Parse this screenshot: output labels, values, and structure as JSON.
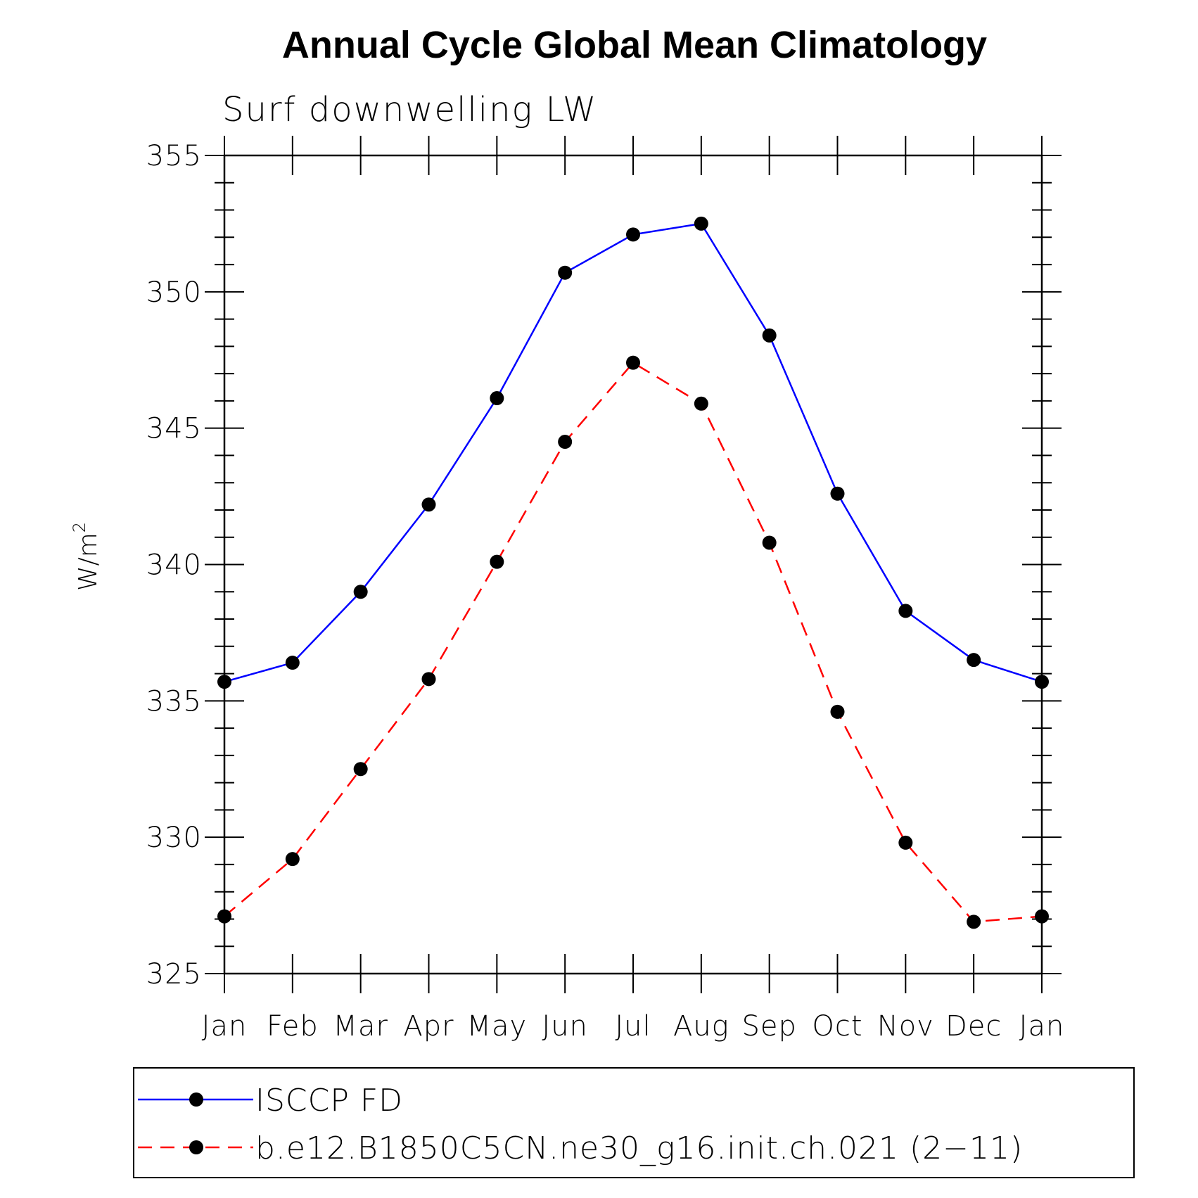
{
  "chart_data": {
    "type": "line",
    "title": "Annual Cycle Global Mean Climatology",
    "subtitle": "Surf downwelling LW",
    "ylabel": "W/m",
    "ylabel_superscript": "2",
    "xlabel": "",
    "categories": [
      "Jan",
      "Feb",
      "Mar",
      "Apr",
      "May",
      "Jun",
      "Jul",
      "Aug",
      "Sep",
      "Oct",
      "Nov",
      "Dec",
      "Jan"
    ],
    "ylim": [
      325,
      355
    ],
    "yticks": [
      325,
      330,
      335,
      340,
      345,
      350,
      355
    ],
    "grid": false,
    "legend_position": "bottom",
    "series": [
      {
        "name": "ISCCP FD",
        "color": "#0000ff",
        "line_style": "solid",
        "marker": "filled-circle",
        "values": [
          335.7,
          336.4,
          339.0,
          342.2,
          346.1,
          350.7,
          352.1,
          352.5,
          348.4,
          342.6,
          338.3,
          336.5,
          335.7
        ]
      },
      {
        "name": "b.e12.B1850C5CN.ne30_g16.init.ch.021 (2−11)",
        "color": "#ff0000",
        "line_style": "dashed",
        "marker": "filled-circle",
        "values": [
          327.1,
          329.2,
          332.5,
          335.8,
          340.1,
          344.5,
          347.4,
          345.9,
          340.8,
          334.6,
          329.8,
          326.9,
          327.1
        ]
      }
    ]
  }
}
